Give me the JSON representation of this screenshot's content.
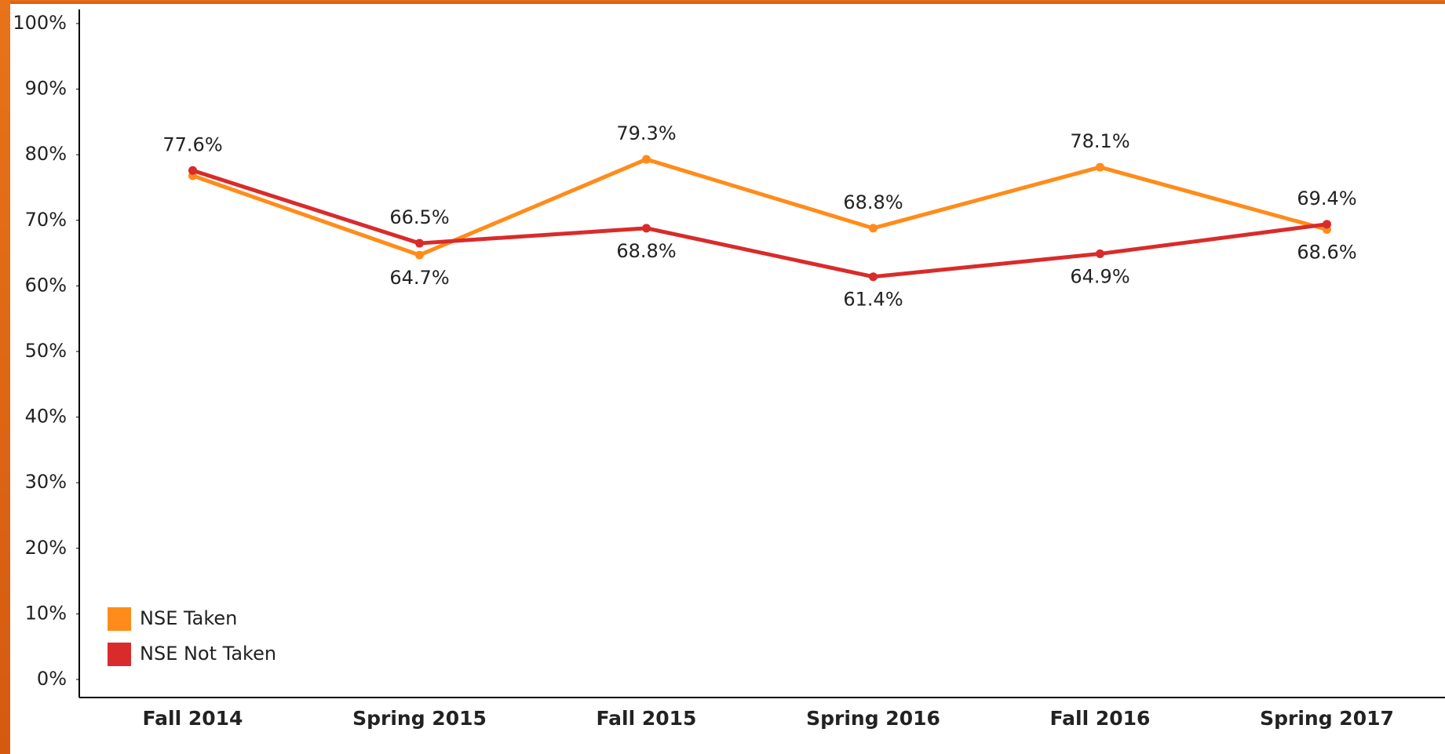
{
  "chart_data": {
    "type": "line",
    "categories": [
      "Fall 2014",
      "Spring 2015",
      "Fall 2015",
      "Spring 2016",
      "Fall 2016",
      "Spring 2017"
    ],
    "series": [
      {
        "name": "NSE Taken",
        "color": "#ff8c1a",
        "values": [
          76.8,
          64.7,
          79.3,
          68.8,
          78.1,
          68.6
        ],
        "value_labels": [
          null,
          "64.7%",
          "79.3%",
          "68.8%",
          "78.1%",
          "68.6%"
        ]
      },
      {
        "name": "NSE Not Taken",
        "color": "#d92b2b",
        "values": [
          77.6,
          66.5,
          68.8,
          61.4,
          64.9,
          69.4
        ],
        "value_labels": [
          "77.6%",
          "66.5%",
          "68.8%",
          "61.4%",
          "64.9%",
          "69.4%"
        ]
      }
    ],
    "ylim": [
      0,
      100
    ],
    "yticks": [
      {
        "value": 0,
        "label": "0%"
      },
      {
        "value": 10,
        "label": "10%"
      },
      {
        "value": 20,
        "label": "20%"
      },
      {
        "value": 30,
        "label": "30%"
      },
      {
        "value": 40,
        "label": "40%"
      },
      {
        "value": 50,
        "label": "50%"
      },
      {
        "value": 60,
        "label": "60%"
      },
      {
        "value": 70,
        "label": "70%"
      },
      {
        "value": 80,
        "label": "80%"
      },
      {
        "value": 90,
        "label": "90%"
      },
      {
        "value": 100,
        "label": "100%"
      }
    ],
    "grid": false,
    "legend": "lower left"
  }
}
